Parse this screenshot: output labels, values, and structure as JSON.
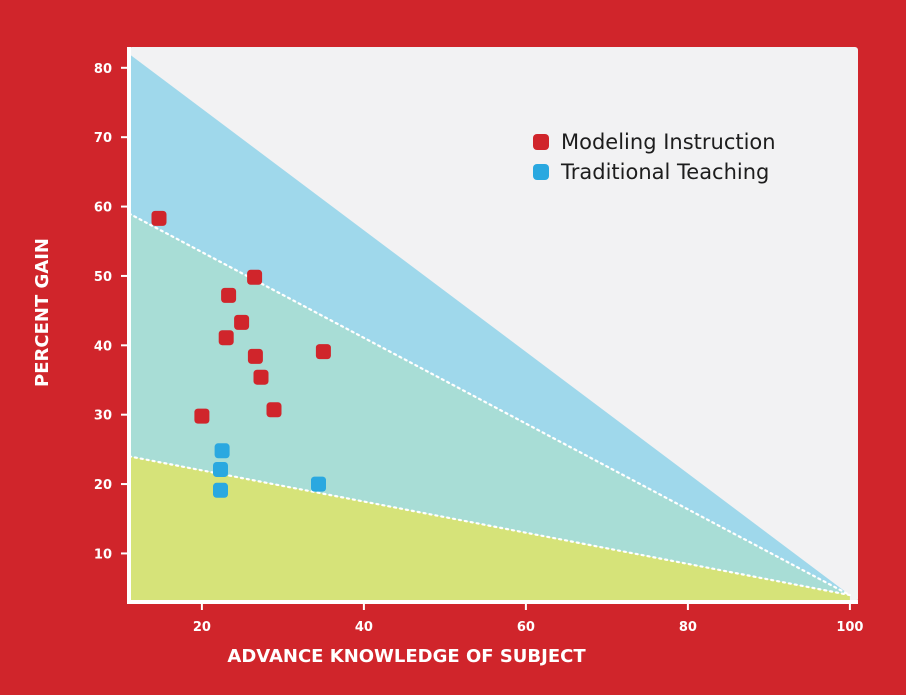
{
  "chart_data": {
    "type": "scatter",
    "xlabel": "ADVANCE KNOWLEDGE OF SUBJECT",
    "ylabel": "PERCENT GAIN",
    "xlim": [
      11,
      101
    ],
    "ylim": [
      3,
      83
    ],
    "x_ticks": [
      20,
      40,
      60,
      80,
      100
    ],
    "y_ticks": [
      10,
      20,
      30,
      40,
      50,
      60,
      70,
      80
    ],
    "grid": false,
    "legend_position": "top-right",
    "colors": {
      "page_background": "#d0252b",
      "plot_background": "#f2f2f3",
      "band_top": "#9fd8eb",
      "band_middle": "#a8ddd6",
      "band_bottom": "#d6e379",
      "modeling": "#d0252b",
      "traditional": "#2aa8e0",
      "boundary_line": "#ffffff"
    },
    "bands": {
      "outer_line": {
        "x": [
          11,
          100
        ],
        "y": [
          82,
          4
        ]
      },
      "upper_boundary": {
        "x": [
          11,
          100
        ],
        "y": [
          59,
          4
        ]
      },
      "lower_boundary": {
        "x": [
          11,
          100
        ],
        "y": [
          24,
          4
        ]
      }
    },
    "series": [
      {
        "name": "Modeling Instruction",
        "color": "#d0252b",
        "x": [
          14.7,
          26.5,
          23.3,
          24.9,
          23.0,
          26.6,
          27.3,
          35.0,
          20.0,
          28.9
        ],
        "y": [
          58.3,
          49.8,
          47.2,
          43.3,
          41.1,
          38.4,
          35.4,
          39.1,
          29.8,
          30.7
        ]
      },
      {
        "name": "Traditional Teaching",
        "color": "#2aa8e0",
        "x": [
          22.5,
          22.3,
          22.3,
          34.4
        ],
        "y": [
          24.8,
          22.1,
          19.1,
          20.0
        ]
      }
    ]
  }
}
